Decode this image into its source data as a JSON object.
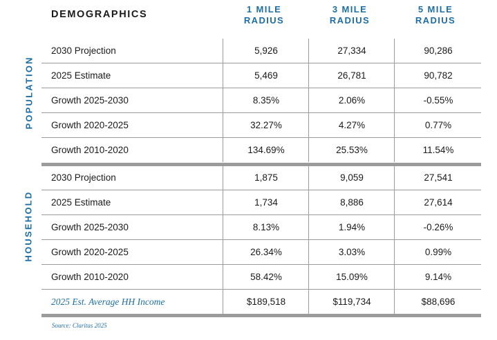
{
  "header": {
    "title": "DEMOGRAPHICS",
    "columns": [
      {
        "line1": "1 MILE",
        "line2": "RADIUS"
      },
      {
        "line1": "3 MILE",
        "line2": "RADIUS"
      },
      {
        "line1": "5 MILE",
        "line2": "RADIUS"
      }
    ]
  },
  "population": {
    "label": "POPULATION",
    "rows": [
      {
        "label": "2030 Projection",
        "values": [
          "5,926",
          "27,334",
          "90,286"
        ]
      },
      {
        "label": "2025 Estimate",
        "values": [
          "5,469",
          "26,781",
          "90,782"
        ]
      },
      {
        "label": "Growth 2025-2030",
        "values": [
          "8.35%",
          "2.06%",
          "-0.55%"
        ]
      },
      {
        "label": "Growth 2020-2025",
        "values": [
          "32.27%",
          "4.27%",
          "0.77%"
        ]
      },
      {
        "label": "Growth 2010-2020",
        "values": [
          "134.69%",
          "25.53%",
          "11.54%"
        ]
      }
    ]
  },
  "household": {
    "label": "HOUSEHOLD",
    "rows": [
      {
        "label": "2030 Projection",
        "values": [
          "1,875",
          "9,059",
          "27,541"
        ]
      },
      {
        "label": "2025 Estimate",
        "values": [
          "1,734",
          "8,886",
          "27,614"
        ]
      },
      {
        "label": "Growth 2025-2030",
        "values": [
          "8.13%",
          "1.94%",
          "-0.26%"
        ]
      },
      {
        "label": "Growth 2020-2025",
        "values": [
          "26.34%",
          "3.03%",
          "0.99%"
        ]
      },
      {
        "label": "Growth 2010-2020",
        "values": [
          "58.42%",
          "15.09%",
          "9.14%"
        ]
      },
      {
        "label": "2025 Est. Average HH Income",
        "values": [
          "$189,518",
          "$119,734",
          "$88,696"
        ]
      }
    ]
  },
  "source": "Source: Claritas 2025",
  "colors": {
    "accent": "#1c6ea4",
    "rule": "#9b9b9b"
  }
}
